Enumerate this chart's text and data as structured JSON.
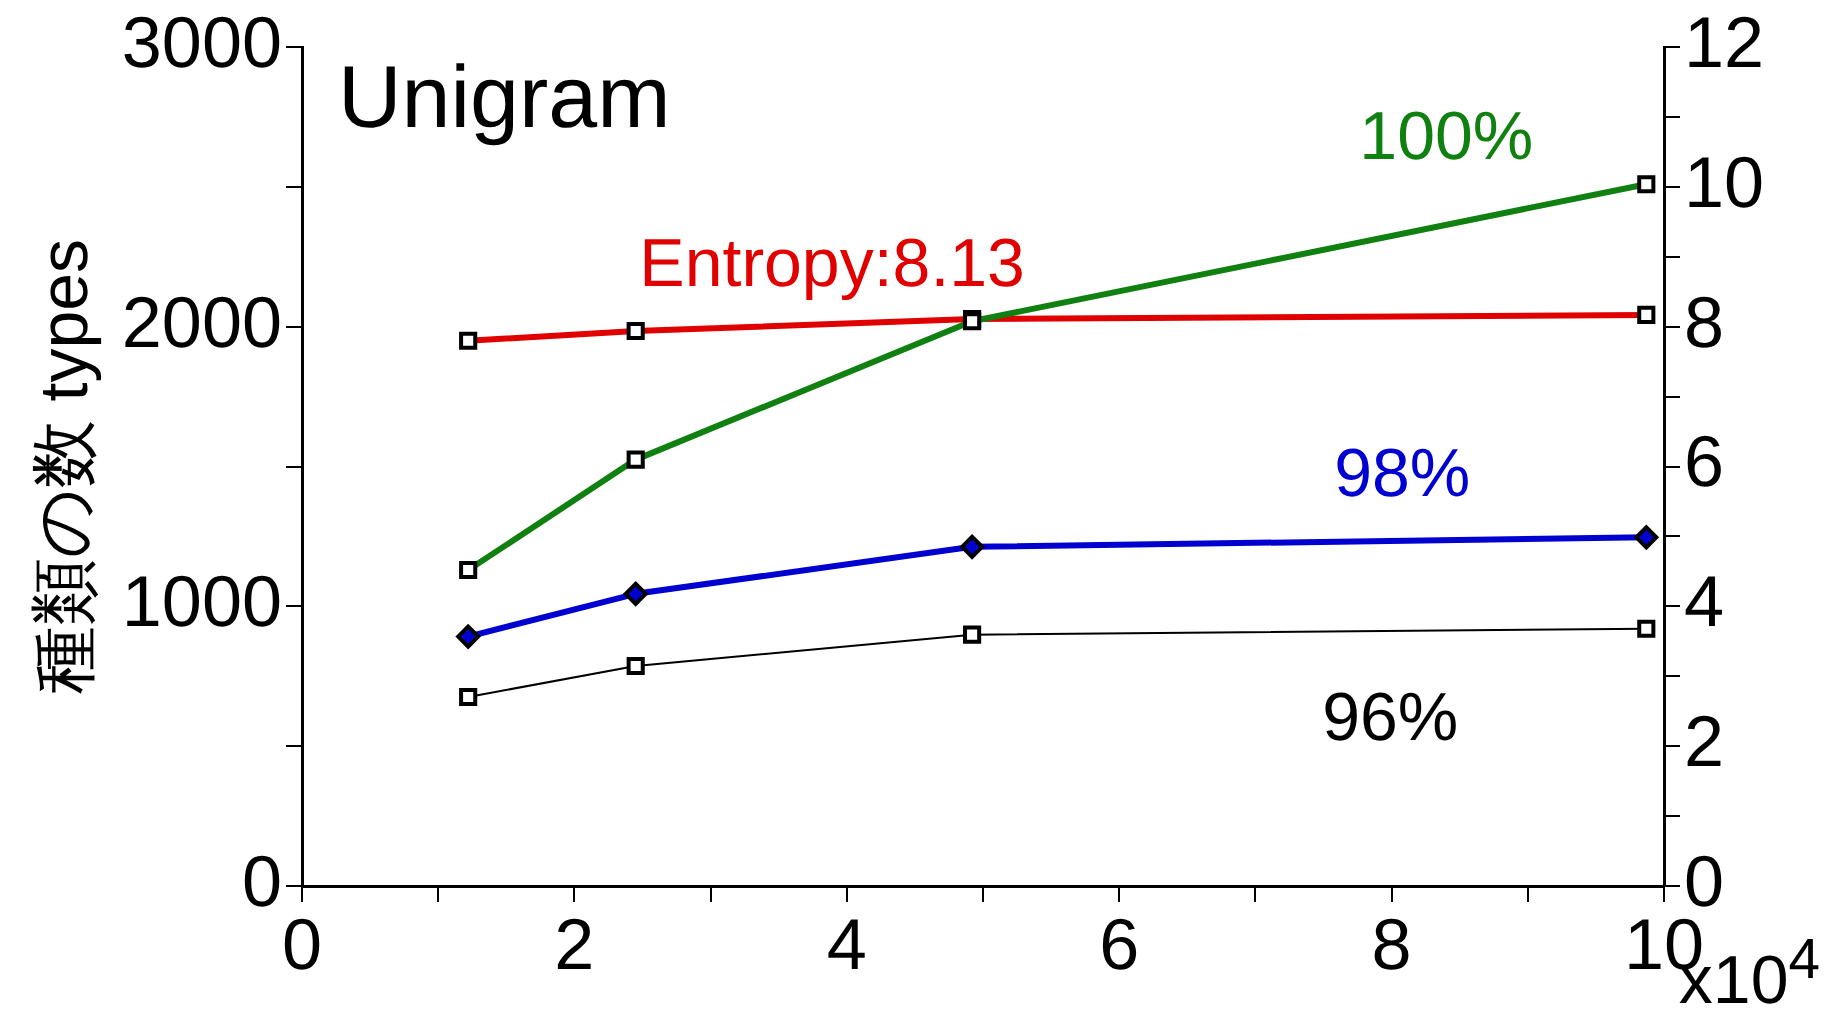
{
  "chart_data": {
    "type": "line",
    "title": "Unigram",
    "xlabel": "x10$^{4}$",
    "ylabel": "種類の数 types",
    "xlim": [
      0,
      10
    ],
    "xticks": [
      0,
      {
        "value": 1,
        "label": null
      },
      2,
      {
        "value": 3,
        "label": null
      },
      4,
      {
        "value": 5,
        "label": null
      },
      6,
      {
        "value": 7,
        "label": null
      },
      8,
      {
        "value": 9,
        "label": null
      },
      10
    ],
    "ylim": [
      0,
      3000
    ],
    "yticks": [
      0,
      {
        "value": 500,
        "label": null
      },
      1000,
      {
        "value": 1500,
        "label": null
      },
      2000,
      {
        "value": 2500,
        "label": null
      },
      3000
    ],
    "y2lim": [
      0,
      12
    ],
    "y2ticks": [
      0,
      {
        "value": 1,
        "label": null
      },
      2,
      {
        "value": 3,
        "label": null
      },
      4,
      {
        "value": 5,
        "label": null
      },
      6,
      {
        "value": 7,
        "label": null
      },
      8,
      {
        "value": 9,
        "label": null
      },
      10,
      {
        "value": 11,
        "label": null
      },
      12
    ],
    "x": [
      1.22,
      2.45,
      4.92,
      9.87
    ],
    "series": [
      {
        "name": "100%",
        "color": "#108010",
        "values": [
          1130,
          1525,
          2020,
          2510
        ],
        "marker": "square"
      },
      {
        "name": "Entropy:8.13",
        "color": "#e00000",
        "values": [
          7.8,
          7.94,
          8.11,
          8.17
        ],
        "axis": "y2",
        "marker": "square"
      },
      {
        "name": "98%",
        "color": "#0000d0",
        "values": [
          892,
          1045,
          1213,
          1247
        ],
        "marker": "diamond"
      },
      {
        "name": "96%",
        "color": "#000000",
        "values": [
          676,
          787,
          899,
          920
        ],
        "marker": "square"
      }
    ],
    "grid": false,
    "legend": false
  }
}
